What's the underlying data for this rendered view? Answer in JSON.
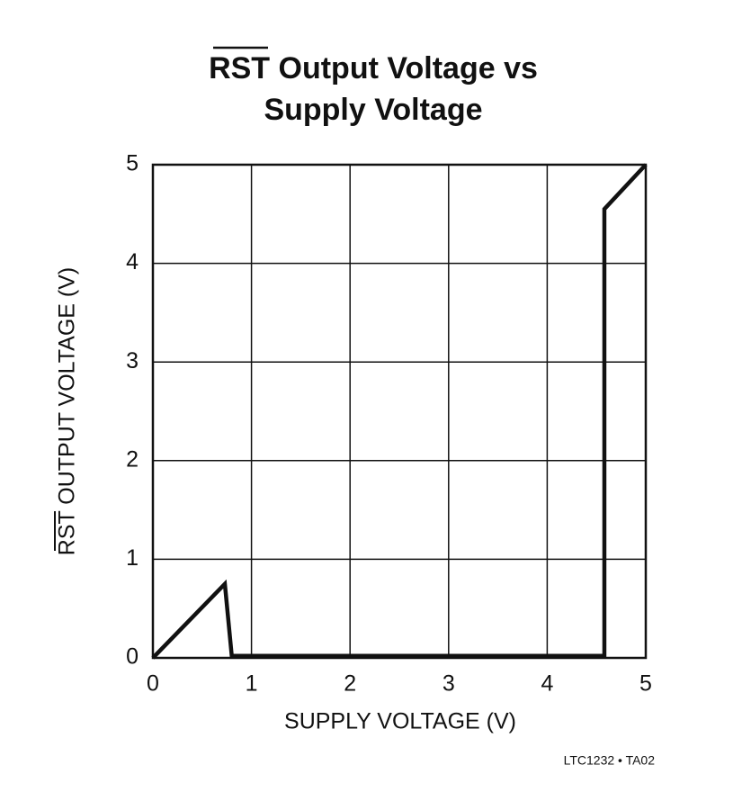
{
  "chart_data": {
    "type": "line",
    "title": [
      "RST Output Voltage vs",
      "Supply Voltage"
    ],
    "x_label": "SUPPLY VOLTAGE (V)",
    "y_label": "RST OUTPUT VOLTAGE (V)",
    "footnote": "LTC1232 • TA02",
    "x": [
      0,
      0.73,
      0.8,
      4.58,
      4.58,
      5
    ],
    "series": [
      {
        "color": "#111111",
        "values": [
          0,
          0.75,
          0.02,
          0.02,
          4.55,
          5
        ]
      }
    ],
    "xlim": [
      0,
      5
    ],
    "xticks": [
      0,
      1,
      2,
      3,
      4,
      5
    ],
    "ylim": [
      0,
      5
    ],
    "yticks": [
      0,
      1,
      2,
      3,
      4,
      5
    ],
    "grid": true
  }
}
